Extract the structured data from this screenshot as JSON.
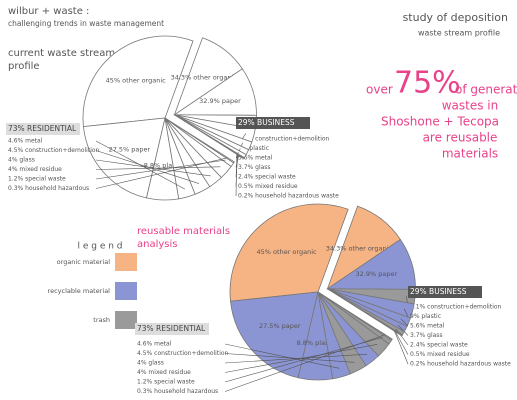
{
  "header": {
    "title": "wilbur + waste :",
    "subtitle": "challenging trends in waste management",
    "right_title": "study of deposition",
    "right_subtitle": "waste stream profile"
  },
  "headline": {
    "lead": "over",
    "figure": "75%",
    "lines": [
      "of generated",
      "wastes in",
      "Shoshone + Tecopa",
      "are reusable",
      "materials"
    ]
  },
  "legend": {
    "title": "l e g e n d",
    "items": [
      {
        "label": "organic material",
        "color": "#f6b384"
      },
      {
        "label": "recyclable material",
        "color": "#8c95d4"
      },
      {
        "label": "trash",
        "color": "#9a9a9a"
      }
    ]
  },
  "chart_data": [
    {
      "type": "pie",
      "title": [
        "current waste stream",
        "profile"
      ],
      "color": "#ffffff",
      "groups": [
        {
          "value": 73,
          "value_label": "73% RESIDENTIAL",
          "values": [
            45,
            27.5,
            8.8,
            4.6,
            4.5,
            4,
            4,
            1.2,
            0.3
          ],
          "value_labels": [
            "45% other organic",
            "27.5% paper",
            "8.8% plastic",
            "4.6% metal",
            "4.5% construction+demolition",
            "4% glass",
            "4% mixed residue",
            "1.2% special waste",
            "0.3% household hazardous"
          ]
        },
        {
          "value": 29,
          "value_label": "29% BUSINESS",
          "values": [
            34.3,
            32.9,
            9.1,
            9,
            5.6,
            3.7,
            2.4,
            0.5,
            0.2
          ],
          "value_labels": [
            "34.3% other organic",
            "32.9% paper",
            "9.1% construction+demolition",
            "9% plastic",
            "5.6% metal",
            "3.7% glass",
            "2.4% special waste",
            "0.5% mixed residue",
            "0.2% household hazardous waste"
          ]
        }
      ]
    },
    {
      "type": "pie",
      "title": [
        "reusable materials",
        "analysis"
      ],
      "groups": [
        {
          "value": 73,
          "value_label": "73% RESIDENTIAL",
          "values": [
            45,
            27.5,
            8.8,
            4.6,
            4.5,
            4,
            4,
            1.2,
            0.3
          ],
          "colors": [
            "#f6b384",
            "#8c95d4",
            "#8c95d4",
            "#8c95d4",
            "#9a9a9a",
            "#8c95d4",
            "#9a9a9a",
            "#9a9a9a",
            "#9a9a9a"
          ],
          "value_labels": [
            "45% other organic",
            "27.5% paper",
            "8.8% plastic",
            "4.6% metal",
            "4.5% construction+demolition",
            "4% glass",
            "4% mixed residue",
            "1.2% special waste",
            "0.3% household hazardous"
          ]
        },
        {
          "value": 29,
          "value_label": "29% BUSINESS",
          "values": [
            34.3,
            32.9,
            9.1,
            9,
            5.6,
            3.7,
            2.4,
            0.5,
            0.2
          ],
          "colors": [
            "#f6b384",
            "#8c95d4",
            "#9a9a9a",
            "#8c95d4",
            "#8c95d4",
            "#8c95d4",
            "#9a9a9a",
            "#9a9a9a",
            "#9a9a9a"
          ],
          "value_labels": [
            "34.3% other organic",
            "32.9% paper",
            "9.1% construction+demolition",
            "9% plastic",
            "5.6% metal",
            "3.7% glass",
            "2.4% special waste",
            "0.5% mixed residue",
            "0.2% household hazardous waste"
          ]
        }
      ]
    }
  ]
}
